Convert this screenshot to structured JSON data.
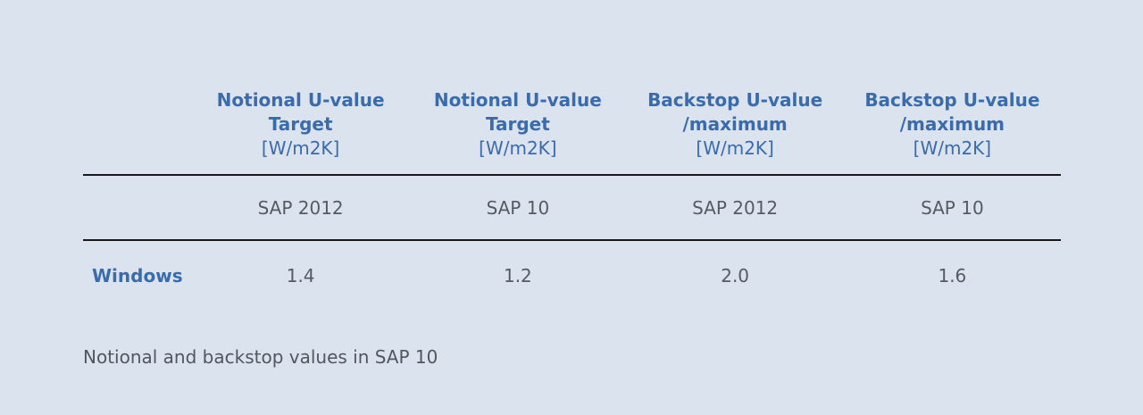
{
  "colors": {
    "background": "#dbe3ef",
    "header_blue": "#3a6bac",
    "body_text": "#565b63",
    "rule": "#191919"
  },
  "table": {
    "columns": [
      {
        "header_line1": "Notional U-value",
        "header_line2": "Target",
        "unit": "[W/m2K]",
        "sap": "SAP 2012"
      },
      {
        "header_line1": "Notional U-value",
        "header_line2": "Target",
        "unit": "[W/m2K]",
        "sap": "SAP 10"
      },
      {
        "header_line1": "Backstop U-value",
        "header_line2": "/maximum",
        "unit": "[W/m2K]",
        "sap": "SAP 2012"
      },
      {
        "header_line1": "Backstop U-value",
        "header_line2": "/maximum",
        "unit": "[W/m2K]",
        "sap": "SAP 10"
      }
    ],
    "rows": [
      {
        "label": "Windows",
        "values": [
          "1.4",
          "1.2",
          "2.0",
          "1.6"
        ]
      }
    ]
  },
  "caption": "Notional and backstop values in SAP 10",
  "chart_data": {
    "type": "table",
    "title": "Notional and backstop values in SAP 10",
    "column_headers": [
      "Notional U-value Target [W/m2K] SAP 2012",
      "Notional U-value Target [W/m2K] SAP 10",
      "Backstop U-value /maximum [W/m2K] SAP 2012",
      "Backstop U-value /maximum [W/m2K] SAP 10"
    ],
    "row_headers": [
      "Windows"
    ],
    "values": [
      [
        1.4,
        1.2,
        2.0,
        1.6
      ]
    ]
  }
}
